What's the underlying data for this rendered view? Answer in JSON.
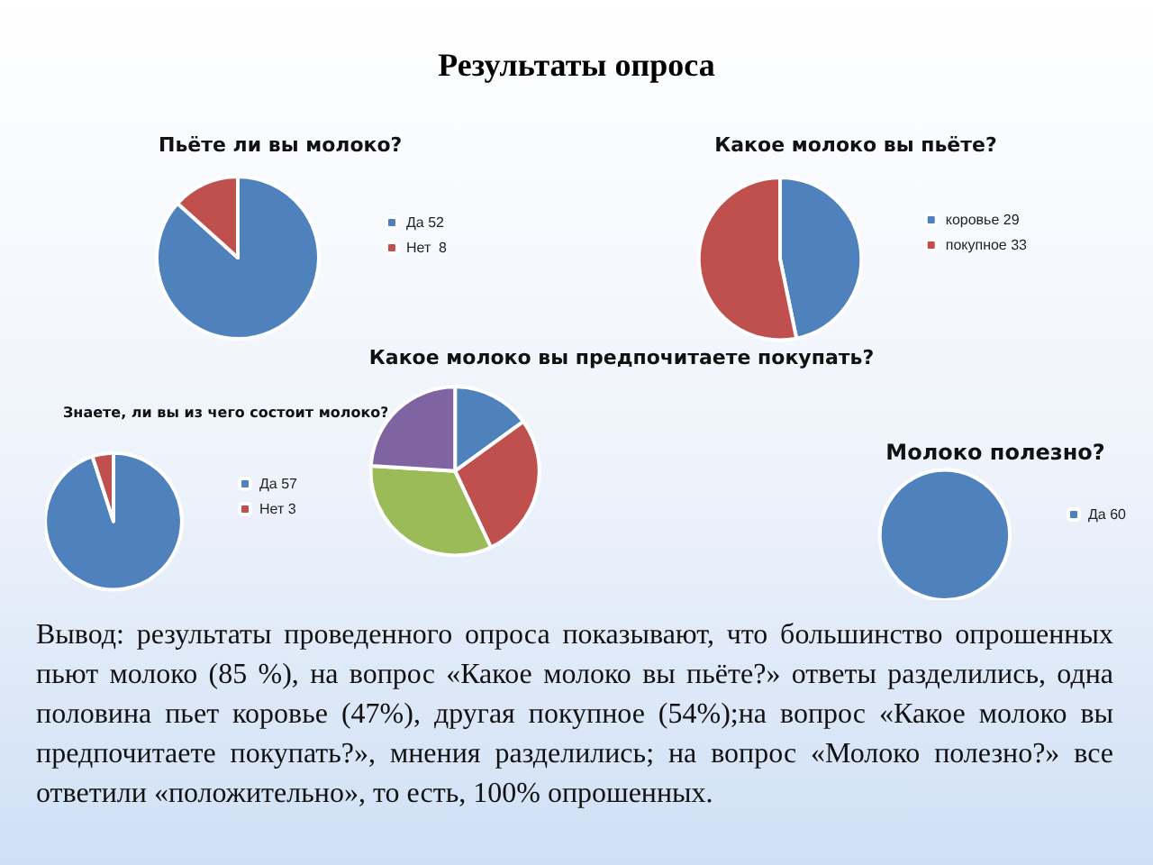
{
  "chart_data": [
    {
      "type": "pie",
      "title": "Пьёте ли вы молоко?",
      "categories": [
        "Да 52",
        "Нет  8"
      ],
      "values": [
        52,
        8
      ],
      "colors": [
        "#4f81bd",
        "#c0504d"
      ],
      "legend": "right"
    },
    {
      "type": "pie",
      "title": "Какое молоко вы пьёте?",
      "categories": [
        "коровье 29",
        "покупное 33"
      ],
      "values": [
        29,
        33
      ],
      "colors": [
        "#4f81bd",
        "#c0504d"
      ],
      "legend": "right"
    },
    {
      "type": "pie",
      "title": "Какое молоко вы предпочитаете покупать?",
      "categories": [
        null,
        null,
        null,
        null
      ],
      "values": [
        15,
        28,
        33,
        24
      ],
      "colors": [
        "#4f81bd",
        "#c0504d",
        "#9bbb59",
        "#8064a2"
      ]
    },
    {
      "type": "pie",
      "title": "Знаете, ли вы из чего состоит молоко?",
      "categories": [
        "Да 57",
        "Нет 3"
      ],
      "values": [
        57,
        3
      ],
      "colors": [
        "#4f81bd",
        "#c0504d"
      ],
      "legend": "right"
    },
    {
      "type": "pie",
      "title": "Молоко полезно?",
      "categories": [
        "Да 60"
      ],
      "values": [
        60
      ],
      "colors": [
        "#4f81bd"
      ],
      "legend": "right"
    },
    {
      "type": "other",
      "title": "Результаты  опроса",
      "annotations": [
        "Вывод: результаты проведенного опроса показывают, что большинство опрошенных пьют молоко (85 %), на вопрос «Какое молоко вы пьёте?» ответы разделились, одна половина пьет коровье (47%), другая покупное (54%);на вопрос «Какое молоко вы предпочитаете покупать?», мнения разделились; на вопрос «Молоко полезно?» все ответили «положительно», то есть, 100% опрошенных."
      ]
    }
  ]
}
